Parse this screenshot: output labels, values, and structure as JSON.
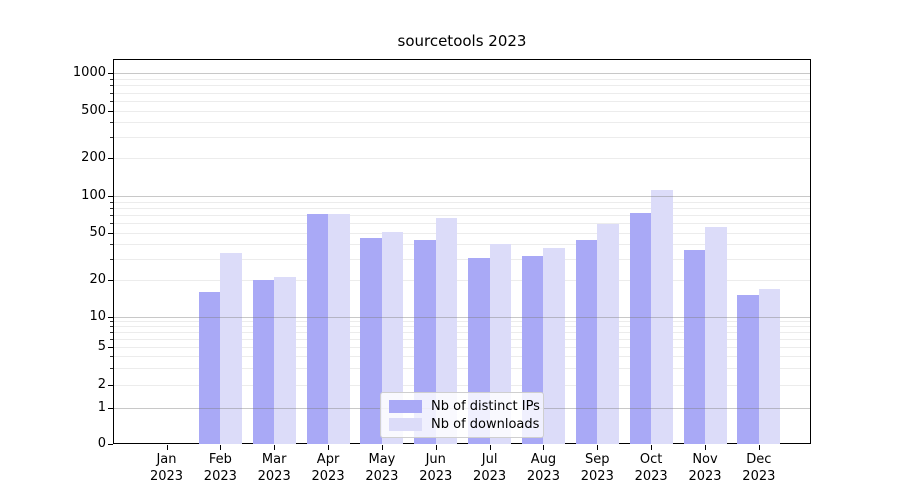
{
  "chart_data": {
    "type": "bar",
    "title": "sourcetools 2023",
    "categories": [
      "Jan 2023",
      "Feb 2023",
      "Mar 2023",
      "Apr 2023",
      "May 2023",
      "Jun 2023",
      "Jul 2023",
      "Aug 2023",
      "Sep 2023",
      "Oct 2023",
      "Nov 2023",
      "Dec 2023"
    ],
    "series": [
      {
        "name": "Nb of distinct IPs",
        "color": "#a9a9f6",
        "values": [
          0,
          16,
          20,
          71,
          45,
          44,
          31,
          32,
          44,
          73,
          36,
          15
        ]
      },
      {
        "name": "Nb of downloads",
        "color": "#dcdcf9",
        "values": [
          0,
          34,
          21,
          71,
          51,
          66,
          40,
          37,
          59,
          112,
          56,
          17
        ]
      }
    ],
    "xlabel": "",
    "ylabel": "",
    "yscale": "symlog",
    "yticks": [
      1000,
      500,
      200,
      100,
      50,
      20,
      10,
      5,
      2,
      1,
      0
    ],
    "ylim": [
      0,
      1300
    ],
    "grid": "on",
    "legend_position": "lower center"
  },
  "colors": {
    "ips_bar": "#a9a9f6",
    "downloads_bar": "#dcdcf9",
    "minor_grid": "#ececec",
    "major_grid": "#c9c9c9",
    "spine": "#000000",
    "legend_border": "#cfcfcf",
    "background": "#ffffff"
  }
}
